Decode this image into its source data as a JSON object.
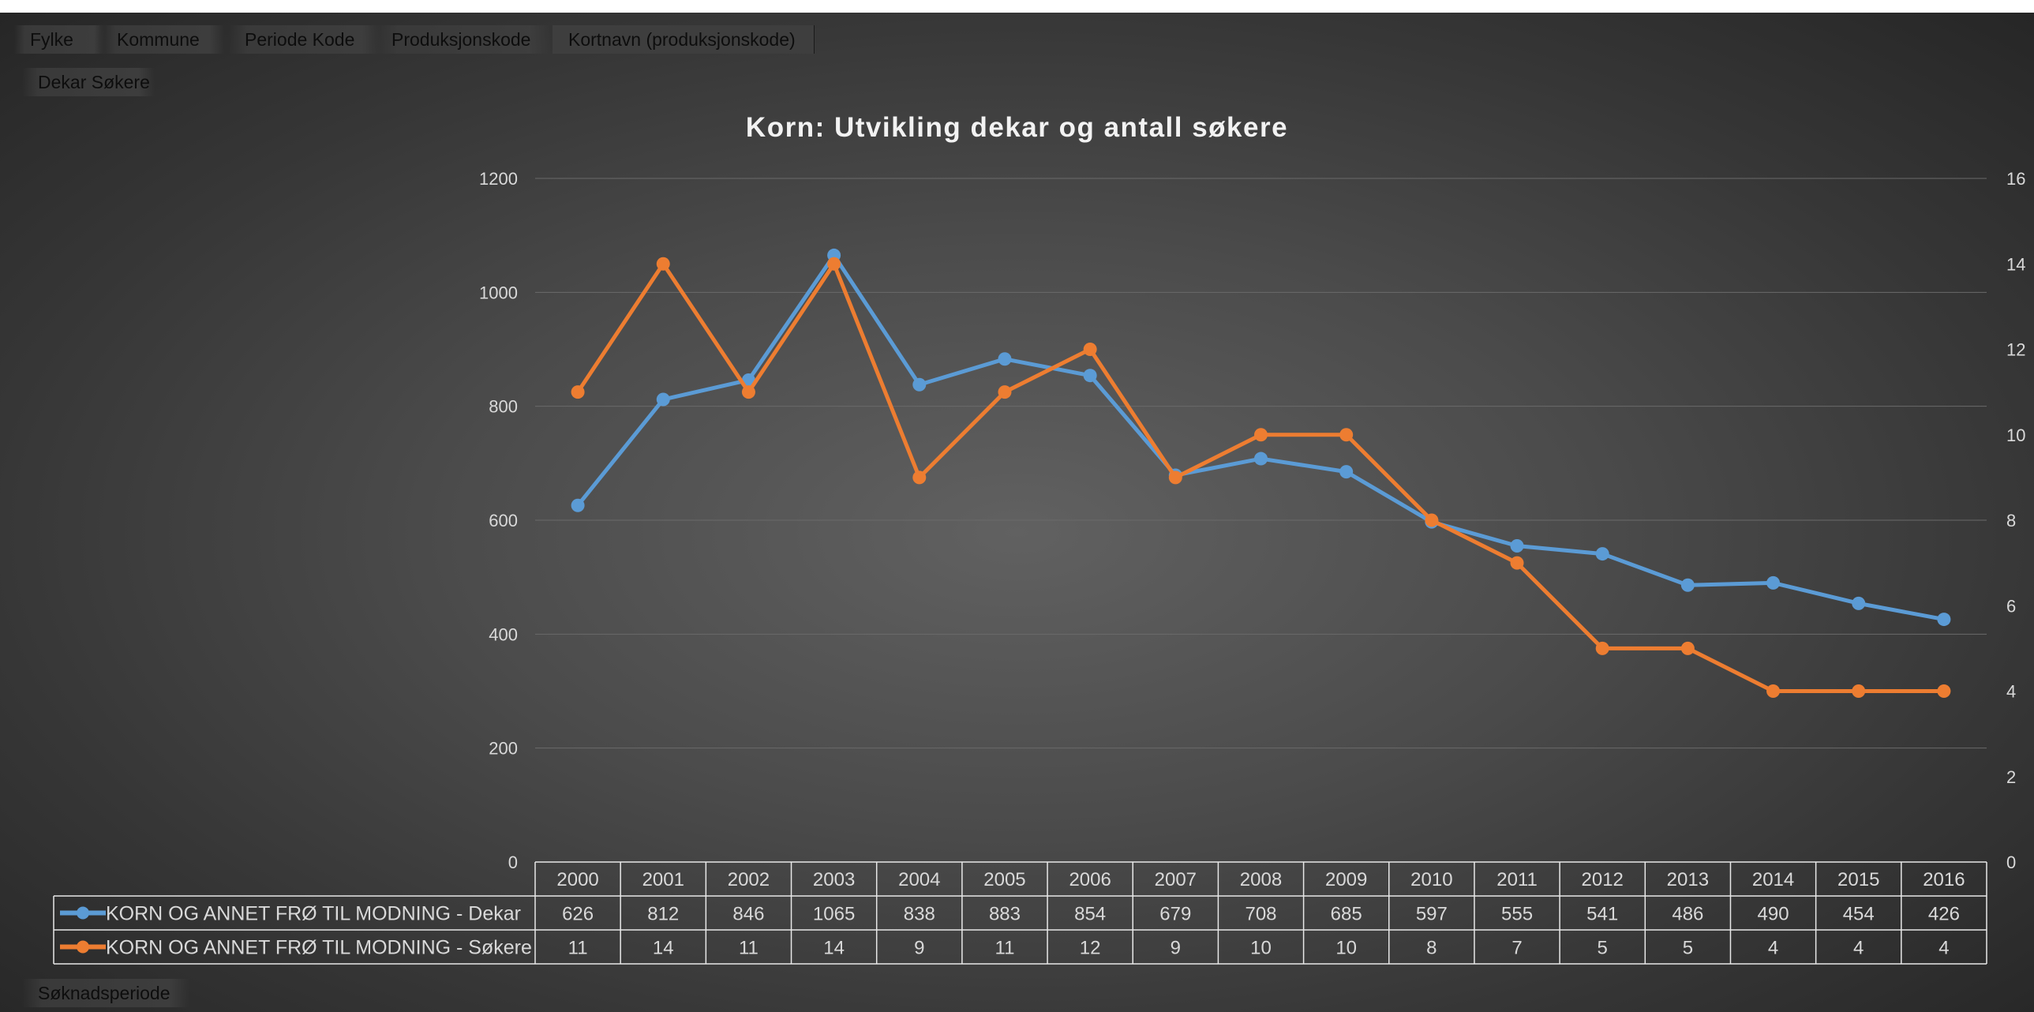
{
  "filter_fields": [
    "Fylke",
    "Kommune",
    "Periode Kode",
    "Produksjonskode",
    "Kortnavn (produksjonskode)"
  ],
  "values_field": "Dekar Søkere",
  "axis_field": "Søknadsperiode",
  "colors": {
    "dekar": "#5b9bd5",
    "sokere": "#ed7d31",
    "text": "#d9d9d9",
    "grid": "#6a6a6a"
  },
  "chart_data": {
    "type": "line",
    "title": "Korn: Utvikling dekar og antall søkere",
    "categories": [
      "2000",
      "2001",
      "2002",
      "2003",
      "2004",
      "2005",
      "2006",
      "2007",
      "2008",
      "2009",
      "2010",
      "2011",
      "2012",
      "2013",
      "2014",
      "2015",
      "2016"
    ],
    "series": [
      {
        "name": "KORN OG ANNET FRØ TIL MODNING - Dekar",
        "axis": "left",
        "values": [
          626,
          812,
          846,
          1065,
          838,
          883,
          854,
          679,
          708,
          685,
          597,
          555,
          541,
          486,
          490,
          454,
          426
        ]
      },
      {
        "name": "KORN OG ANNET FRØ TIL MODNING - Søkere",
        "axis": "right",
        "values": [
          11,
          14,
          11,
          14,
          9,
          11,
          12,
          9,
          10,
          10,
          8,
          7,
          5,
          5,
          4,
          4,
          4
        ]
      }
    ],
    "ylim_left": [
      0,
      1200
    ],
    "yticks_left": [
      "0",
      "200",
      "400",
      "600",
      "800",
      "1000",
      "1200"
    ],
    "ylim_right": [
      0,
      16
    ],
    "yticks_right": [
      "0",
      "2",
      "4",
      "6",
      "8",
      "10",
      "12",
      "14",
      "16"
    ],
    "grid": true,
    "data_table": true
  }
}
